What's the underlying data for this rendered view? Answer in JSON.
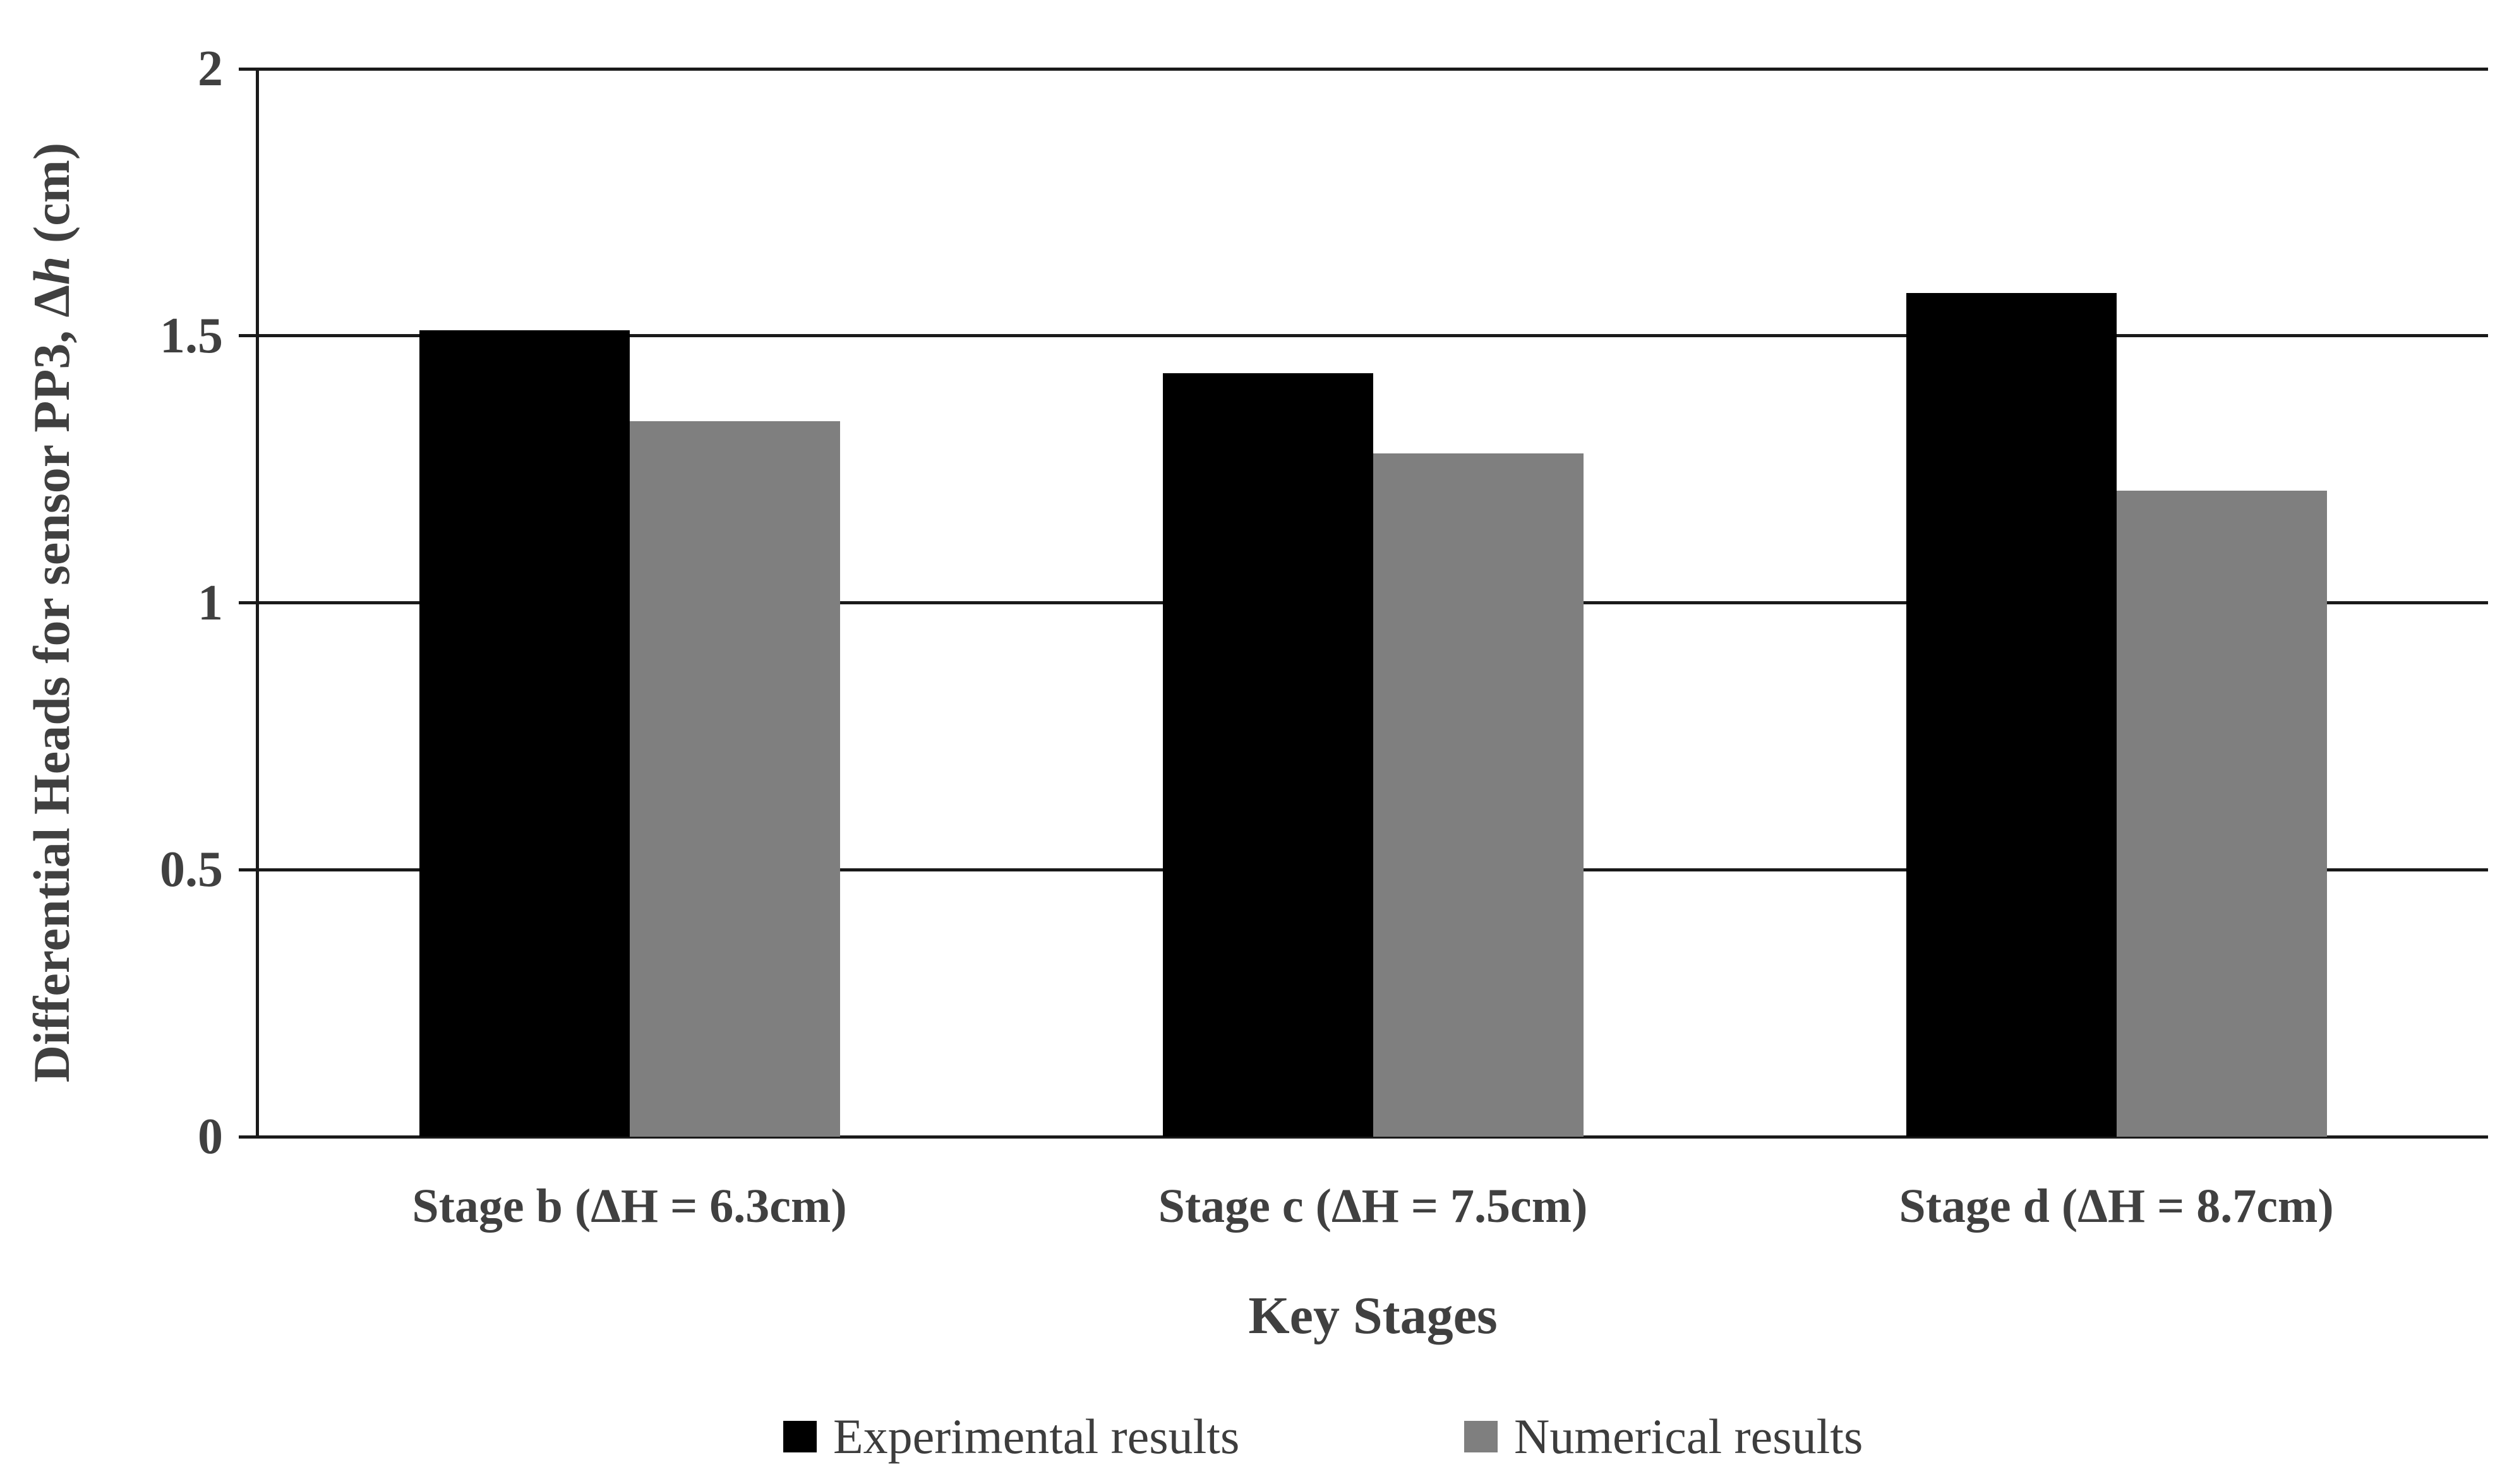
{
  "chart_data": {
    "type": "bar",
    "categories": [
      "Stage b (ΔH = 6.3cm)",
      "Stage c (ΔH = 7.5cm)",
      "Stage d (ΔH = 8.7cm)"
    ],
    "series": [
      {
        "name": "Experimental results",
        "color": "#000000",
        "values": [
          1.51,
          1.43,
          1.58
        ]
      },
      {
        "name": "Numerical results",
        "color": "#7f7f7f",
        "values": [
          1.34,
          1.28,
          1.21
        ]
      }
    ],
    "title": "",
    "xlabel": "Key Stages",
    "ylabel": "Differential Heads for sensor PP3, Δh (cm)",
    "ylabel_prefix": "Differential Heads for sensor PP3, Δ",
    "ylabel_italic": "h",
    "ylabel_suffix": " (cm)",
    "ylim": [
      0,
      2
    ],
    "yticks": [
      0,
      0.5,
      1,
      1.5,
      2
    ],
    "ytick_labels": [
      "0",
      "0.5",
      "1",
      "1.5",
      "2"
    ],
    "grid": true,
    "legend_position": "bottom",
    "bar_color_black": "#000000",
    "bar_color_gray": "#7f7f7f",
    "axis_line_color": "#1a1a1a",
    "text_color": "#404040"
  }
}
